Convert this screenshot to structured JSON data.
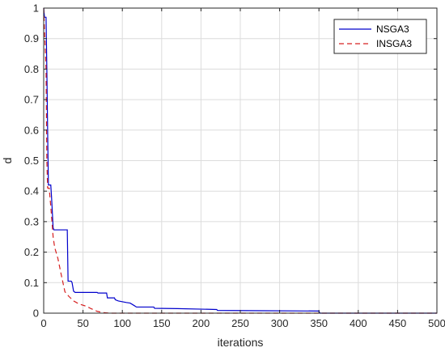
{
  "chart_data": {
    "type": "line",
    "title": "",
    "xlabel": "iterations",
    "ylabel": "d",
    "xlim": [
      0,
      500
    ],
    "ylim": [
      0,
      1
    ],
    "xticks": [
      0,
      50,
      100,
      150,
      200,
      250,
      300,
      350,
      400,
      450,
      500
    ],
    "yticks": [
      0,
      0.1,
      0.2,
      0.3,
      0.4,
      0.5,
      0.6,
      0.7,
      0.8,
      0.9,
      1
    ],
    "xtick_labels": [
      "0",
      "50",
      "100",
      "150",
      "200",
      "250",
      "300",
      "350",
      "400",
      "450",
      "500"
    ],
    "ytick_labels": [
      "0",
      "0.1",
      "0.2",
      "0.3",
      "0.4",
      "0.5",
      "0.6",
      "0.7",
      "0.8",
      "0.9",
      "1"
    ],
    "grid": true,
    "legend_position": "top-right",
    "series": [
      {
        "name": "NSGA3",
        "color": "#0000cc",
        "style": "solid",
        "points": [
          [
            0,
            1.0
          ],
          [
            1,
            0.97
          ],
          [
            3,
            0.97
          ],
          [
            4,
            0.8
          ],
          [
            5,
            0.6
          ],
          [
            6,
            0.42
          ],
          [
            9,
            0.42
          ],
          [
            10,
            0.38
          ],
          [
            12,
            0.28
          ],
          [
            13,
            0.273
          ],
          [
            30,
            0.273
          ],
          [
            31,
            0.105
          ],
          [
            35,
            0.105
          ],
          [
            36,
            0.101
          ],
          [
            38,
            0.072
          ],
          [
            40,
            0.068
          ],
          [
            68,
            0.068
          ],
          [
            69,
            0.066
          ],
          [
            80,
            0.066
          ],
          [
            81,
            0.05
          ],
          [
            90,
            0.05
          ],
          [
            91,
            0.044
          ],
          [
            95,
            0.04
          ],
          [
            105,
            0.035
          ],
          [
            110,
            0.033
          ],
          [
            115,
            0.025
          ],
          [
            118,
            0.02
          ],
          [
            140,
            0.02
          ],
          [
            141,
            0.016
          ],
          [
            170,
            0.015
          ],
          [
            220,
            0.012
          ],
          [
            221,
            0.009
          ],
          [
            280,
            0.008
          ],
          [
            350,
            0.007
          ],
          [
            351,
            0.0
          ],
          [
            500,
            0.0
          ]
        ]
      },
      {
        "name": "INSGA3",
        "color": "#d62020",
        "style": "dashed",
        "points": [
          [
            0,
            1.0
          ],
          [
            1,
            0.93
          ],
          [
            3,
            0.8
          ],
          [
            4,
            0.5
          ],
          [
            5,
            0.41
          ],
          [
            7,
            0.41
          ],
          [
            9,
            0.35
          ],
          [
            12,
            0.25
          ],
          [
            14,
            0.215
          ],
          [
            18,
            0.18
          ],
          [
            22,
            0.13
          ],
          [
            27,
            0.07
          ],
          [
            32,
            0.055
          ],
          [
            38,
            0.04
          ],
          [
            45,
            0.03
          ],
          [
            55,
            0.022
          ],
          [
            60,
            0.015
          ],
          [
            68,
            0.006
          ],
          [
            75,
            0.002
          ],
          [
            85,
            0.0
          ],
          [
            500,
            0.0
          ]
        ]
      }
    ]
  }
}
